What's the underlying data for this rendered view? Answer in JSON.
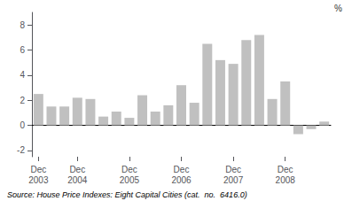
{
  "chart_data": {
    "type": "bar",
    "categories": [
      "Dec\n2003",
      null,
      null,
      "Dec\n2004",
      null,
      null,
      null,
      "Dec\n2005",
      null,
      null,
      null,
      "Dec\n2006",
      null,
      null,
      null,
      "Dec\n2007",
      null,
      null,
      null,
      "Dec\n2008",
      null,
      null,
      null
    ],
    "values": [
      2.5,
      1.5,
      1.5,
      2.2,
      2.1,
      0.7,
      1.1,
      0.6,
      2.4,
      1.1,
      1.6,
      3.2,
      1.8,
      6.5,
      5.2,
      4.9,
      6.8,
      7.2,
      2.1,
      3.5,
      -0.7,
      -0.3,
      0.3
    ],
    "color": "#c0c0c0",
    "ylim": [
      -2.5,
      9.0
    ],
    "yticks": [
      -2,
      0,
      2,
      4,
      6,
      8
    ],
    "grid": false,
    "ylabel": "%",
    "annotations": [
      "Source: House Price Indexes: Eight Capital Cities (cat.  no.  6416.0)"
    ]
  }
}
